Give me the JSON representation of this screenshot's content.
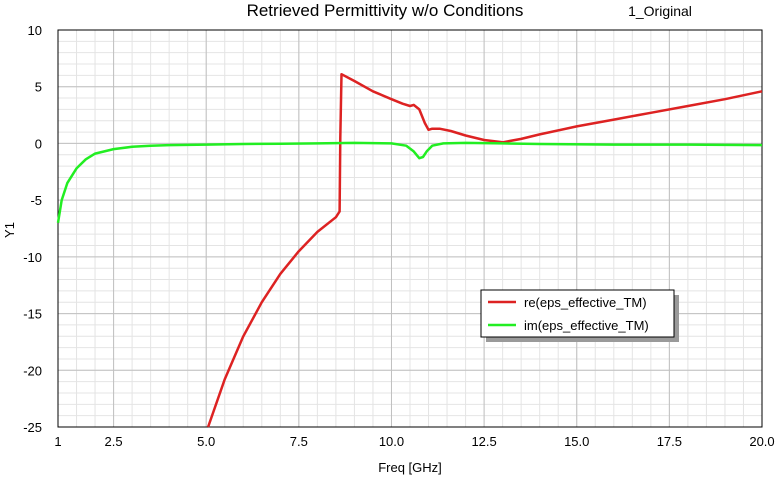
{
  "chart_data": {
    "type": "line",
    "title": "Retrieved Permittivity w/o Conditions",
    "subtitle": "1_Original",
    "xlabel": "Freq [GHz]",
    "ylabel": "Y1",
    "xlim": [
      1,
      20
    ],
    "ylim": [
      -25,
      10
    ],
    "x_tick_labels": [
      "1",
      "2.5",
      "5.0",
      "7.5",
      "10.0",
      "12.5",
      "15.0",
      "17.5",
      "20.0"
    ],
    "x_tick_values": [
      1,
      2.5,
      5,
      7.5,
      10,
      12.5,
      15,
      17.5,
      20
    ],
    "y_tick_values": [
      10,
      5,
      0,
      -5,
      -10,
      -15,
      -20,
      -25
    ],
    "grid": true,
    "legend_position": "right",
    "series": [
      {
        "name": "re(eps_effective_TM)",
        "color": "#dd2222",
        "x": [
          5.05,
          5.5,
          6.0,
          6.5,
          7.0,
          7.5,
          8.0,
          8.5,
          8.6,
          8.62,
          8.65,
          9.0,
          9.5,
          10.0,
          10.3,
          10.5,
          10.6,
          10.75,
          10.9,
          11.0,
          11.1,
          11.3,
          11.6,
          12.0,
          12.5,
          13.0,
          13.5,
          14.0,
          15.0,
          16.0,
          17.0,
          18.0,
          19.0,
          20.0
        ],
        "y": [
          -25.0,
          -20.8,
          -17.0,
          -14.0,
          -11.5,
          -9.5,
          -7.8,
          -6.5,
          -6.0,
          0.5,
          6.1,
          5.5,
          4.6,
          3.9,
          3.5,
          3.3,
          3.4,
          3.0,
          1.8,
          1.2,
          1.3,
          1.3,
          1.1,
          0.7,
          0.3,
          0.1,
          0.4,
          0.8,
          1.5,
          2.1,
          2.7,
          3.3,
          3.9,
          4.6
        ]
      },
      {
        "name": "im(eps_effective_TM)",
        "color": "#22ee22",
        "x": [
          1.0,
          1.1,
          1.25,
          1.5,
          1.75,
          2.0,
          2.5,
          3.0,
          3.5,
          4.0,
          5.0,
          6.0,
          7.0,
          8.0,
          9.0,
          10.0,
          10.4,
          10.6,
          10.75,
          10.85,
          10.95,
          11.1,
          11.4,
          12.0,
          13.0,
          14.0,
          16.0,
          18.0,
          20.0
        ],
        "y": [
          -7.0,
          -5.0,
          -3.5,
          -2.2,
          -1.4,
          -0.9,
          -0.5,
          -0.3,
          -0.2,
          -0.15,
          -0.1,
          -0.05,
          -0.02,
          0.0,
          0.05,
          0.0,
          -0.2,
          -0.7,
          -1.3,
          -1.2,
          -0.7,
          -0.2,
          0.0,
          0.05,
          0.0,
          -0.05,
          -0.1,
          -0.1,
          -0.15
        ]
      }
    ]
  }
}
